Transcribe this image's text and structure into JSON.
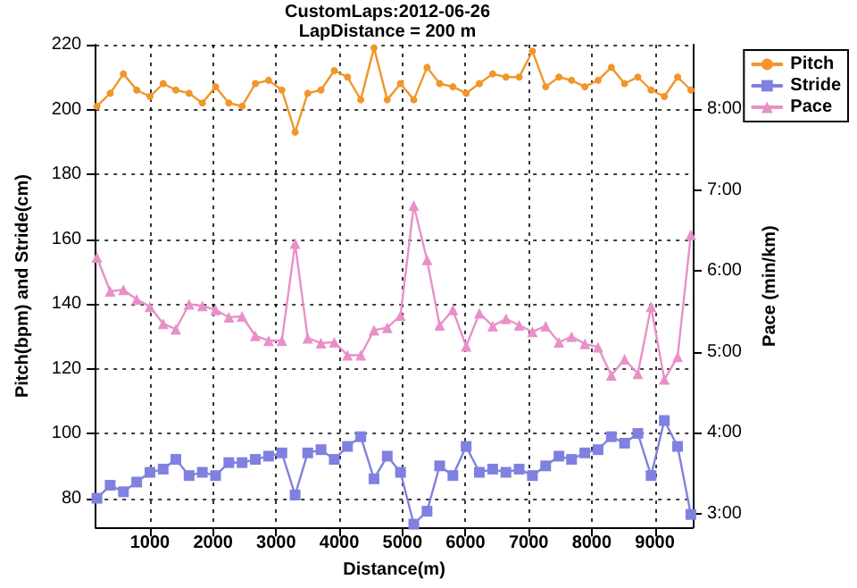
{
  "chart_data": {
    "type": "line",
    "title": "CustomLaps:2012-06-26",
    "subtitle": "LapDistance = 200 m",
    "xlabel": "Distance(m)",
    "ylabel": "Pitch(bpm) and Stride(cm)",
    "y2label": "Pace (min/km)",
    "x": [
      160,
      370,
      580,
      790,
      1000,
      1210,
      1410,
      1620,
      1830,
      2040,
      2250,
      2460,
      2670,
      2880,
      3090,
      3300,
      3500,
      3710,
      3920,
      4130,
      4340,
      4550,
      4760,
      4970,
      5180,
      5390,
      5590,
      5800,
      6010,
      6220,
      6430,
      6640,
      6850,
      7060,
      7270,
      7480,
      7680,
      7890,
      8100,
      8310,
      8520,
      8730,
      8940,
      9150,
      9360,
      9570
    ],
    "series": [
      {
        "name": "Pitch",
        "color": "#f0962a",
        "marker": "circle",
        "values": [
          201,
          205,
          211,
          206,
          204,
          208,
          206,
          205,
          202,
          207,
          202,
          201,
          208,
          209,
          206,
          193,
          205,
          206,
          212,
          210,
          203,
          219,
          203,
          208,
          203,
          213,
          208,
          207,
          205,
          208,
          211,
          210,
          210,
          218,
          207,
          210,
          209,
          207,
          209,
          213,
          208,
          210,
          206,
          204,
          210,
          206
        ]
      },
      {
        "name": "Stride",
        "color": "#8080e0",
        "marker": "square",
        "values": [
          80,
          84,
          82,
          85,
          88,
          89,
          92,
          87,
          88,
          87,
          91,
          91,
          92,
          93,
          94,
          81,
          94,
          95,
          92,
          96,
          99,
          86,
          93,
          88,
          72,
          76,
          90,
          87,
          96,
          88,
          89,
          88,
          89,
          87,
          90,
          93,
          92,
          94,
          95,
          99,
          97,
          100,
          87,
          104,
          96,
          75
        ]
      },
      {
        "name": "Pace",
        "color": "#e890c8",
        "marker": "triangle",
        "axis": "y2",
        "values": [
          6.17,
          5.75,
          5.77,
          5.65,
          5.56,
          5.35,
          5.28,
          5.59,
          5.57,
          5.52,
          5.43,
          5.44,
          5.2,
          5.14,
          5.14,
          6.34,
          5.17,
          5.11,
          5.12,
          4.96,
          4.96,
          5.27,
          5.3,
          5.45,
          6.81,
          6.14,
          5.33,
          5.52,
          5.07,
          5.48,
          5.32,
          5.41,
          5.33,
          5.25,
          5.32,
          5.12,
          5.19,
          5.1,
          5.06,
          4.71,
          4.91,
          4.73,
          5.56,
          4.66,
          4.94,
          6.45
        ]
      }
    ],
    "xlim": [
      140,
      9600
    ],
    "xticks": [
      1000,
      2000,
      3000,
      4000,
      5000,
      6000,
      7000,
      8000,
      9000
    ],
    "ylim": [
      71,
      220
    ],
    "yticks": [
      80,
      100,
      120,
      140,
      160,
      180,
      200,
      220
    ],
    "y2lim": [
      2.83,
      8.8
    ],
    "y2ticks": [
      {
        "value": 3,
        "label": "3:00"
      },
      {
        "value": 4,
        "label": "4:00"
      },
      {
        "value": 5,
        "label": "5:00"
      },
      {
        "value": 6,
        "label": "6:00"
      },
      {
        "value": 7,
        "label": "7:00"
      },
      {
        "value": 8,
        "label": "8:00"
      }
    ],
    "grid": true,
    "legend": "top right",
    "line_style": "solid"
  }
}
